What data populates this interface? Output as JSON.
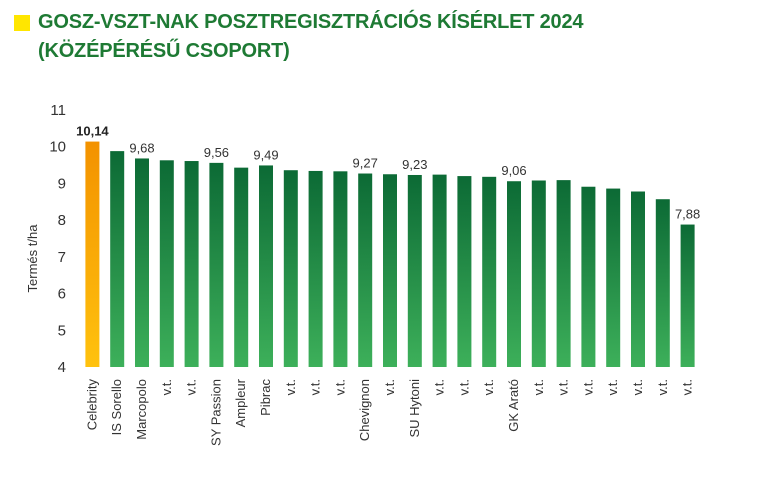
{
  "title": {
    "line1": "GOSZ-VSZT-NAK POSZTREGISZTRÁCIÓS KÍSÉRLET 2024",
    "line2": "(KÖZÉPÉRÉSŰ CSOPORT)"
  },
  "colors": {
    "title": "#1e7a34",
    "marker": "#ffe600",
    "highlight_top": "#f39200",
    "highlight_bottom": "#ffc20e",
    "bar_top": "#0c6a35",
    "bar_bottom": "#3db05a"
  },
  "chart_data": {
    "type": "bar",
    "ylabel": "Termés t/ha",
    "ylim": [
      4,
      11
    ],
    "yticks": [
      4,
      5,
      6,
      7,
      8,
      9,
      10,
      11
    ],
    "grid": false,
    "highlight_index": 0,
    "categories": [
      "Celebrity",
      "IS Sorello",
      "Marcopolo",
      "v.t.",
      "v.t.",
      "SY Passion",
      "Ampleur",
      "Pibrac",
      "v.t.",
      "v.t.",
      "v.t.",
      "Chevignon",
      "v.t.",
      "SU Hytoni",
      "v.t.",
      "v.t.",
      "v.t.",
      "GK Arató",
      "v.t.",
      "v.t.",
      "v.t.",
      "v.t.",
      "v.t.",
      "v.t.",
      "v.t."
    ],
    "values": [
      10.14,
      9.88,
      9.68,
      9.63,
      9.61,
      9.56,
      9.43,
      9.49,
      9.36,
      9.34,
      9.33,
      9.27,
      9.25,
      9.23,
      9.24,
      9.2,
      9.18,
      9.06,
      9.08,
      9.09,
      8.91,
      8.86,
      8.78,
      8.57,
      7.88
    ],
    "data_labels": [
      "10,14",
      "",
      "9,68",
      "",
      "",
      "9,56",
      "",
      "9,49",
      "",
      "",
      "",
      "9,27",
      "",
      "9,23",
      "",
      "",
      "",
      "9,06",
      "",
      "",
      "",
      "",
      "",
      "",
      "7,88"
    ]
  }
}
